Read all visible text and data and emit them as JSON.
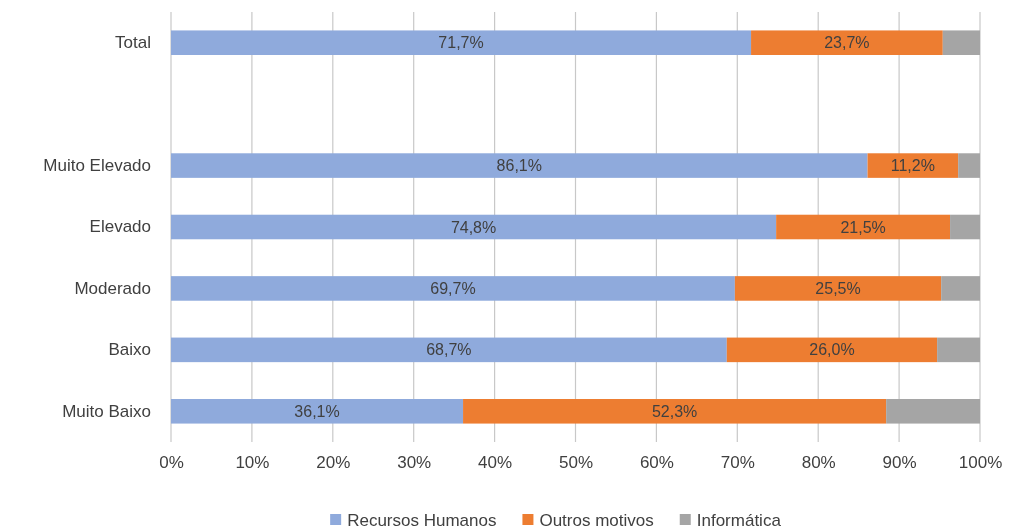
{
  "chart_data": {
    "type": "bar",
    "orientation": "horizontal",
    "stacked": true,
    "categories": [
      "Total",
      null,
      "Muito Elevado",
      "Elevado",
      "Moderado",
      "Baixo",
      "Muito Baixo"
    ],
    "series": [
      {
        "name": "Recursos Humanos",
        "color": "#8faadc",
        "values": [
          71.7,
          null,
          86.1,
          74.8,
          69.7,
          68.7,
          36.1
        ],
        "value_labels": [
          "71,7%",
          null,
          "86,1%",
          "74,8%",
          "69,7%",
          "68,7%",
          "36,1%"
        ]
      },
      {
        "name": "Outros motivos",
        "color": "#ed7d31",
        "values": [
          23.7,
          null,
          11.2,
          21.5,
          25.5,
          26.0,
          52.3
        ],
        "value_labels": [
          "23,7%",
          null,
          "11,2%",
          "21,5%",
          "25,5%",
          "26,0%",
          "52,3%"
        ]
      },
      {
        "name": "Informática",
        "color": "#a5a5a5",
        "values": [
          4.6,
          null,
          2.7,
          3.7,
          4.8,
          5.3,
          11.6
        ]
      }
    ],
    "xlim": [
      0,
      100
    ],
    "xticks": [
      {
        "value": 0,
        "label": "0%"
      },
      {
        "value": 10,
        "label": "10%"
      },
      {
        "value": 20,
        "label": "20%"
      },
      {
        "value": 30,
        "label": "30%"
      },
      {
        "value": 40,
        "label": "40%"
      },
      {
        "value": 50,
        "label": "50%"
      },
      {
        "value": 60,
        "label": "60%"
      },
      {
        "value": 70,
        "label": "70%"
      },
      {
        "value": 80,
        "label": "80%"
      },
      {
        "value": 90,
        "label": "90%"
      },
      {
        "value": 100,
        "label": "100%"
      }
    ],
    "grid": "x",
    "legend": "bottom"
  }
}
